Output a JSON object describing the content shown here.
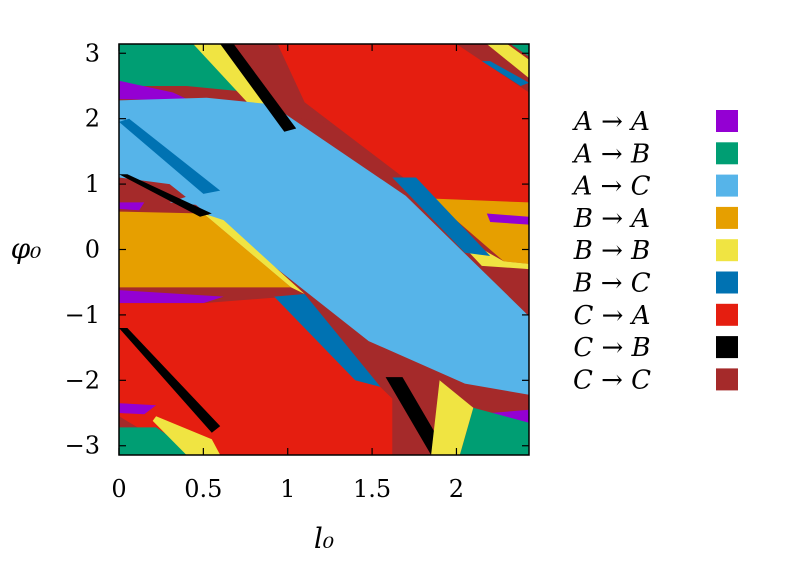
{
  "chart_data": {
    "type": "heatmap",
    "title": "",
    "xlabel": "l₀",
    "ylabel": "φ₀",
    "xlim": [
      0,
      2.43
    ],
    "ylim": [
      -3.1416,
      3.1416
    ],
    "xticks": [
      {
        "value": 0,
        "label": "0"
      },
      {
        "value": 0.5,
        "label": "0.5"
      },
      {
        "value": 1,
        "label": "1"
      },
      {
        "value": 1.5,
        "label": "1.5"
      },
      {
        "value": 2,
        "label": "2"
      }
    ],
    "yticks": [
      {
        "value": 3,
        "label": "3"
      },
      {
        "value": 2,
        "label": "2"
      },
      {
        "value": 1,
        "label": "1"
      },
      {
        "value": 0,
        "label": "0"
      },
      {
        "value": -1,
        "label": "−1"
      },
      {
        "value": -2,
        "label": "−2"
      },
      {
        "value": -3,
        "label": "−3"
      }
    ],
    "grid": false,
    "legend_position": "right",
    "categories": [
      {
        "label": "A → A",
        "color": "#9400d3"
      },
      {
        "label": "A → B",
        "color": "#009e73"
      },
      {
        "label": "A → C",
        "color": "#56b4e9"
      },
      {
        "label": "B → A",
        "color": "#e69f00"
      },
      {
        "label": "B → B",
        "color": "#f0e442"
      },
      {
        "label": "B → C",
        "color": "#0072b2"
      },
      {
        "label": "C → A",
        "color": "#e51e10"
      },
      {
        "label": "C → B",
        "color": "#000000"
      },
      {
        "label": "C → C",
        "color": "#a52a2a"
      }
    ],
    "regions": [
      {
        "category": "C → C",
        "points": [
          [
            0,
            3.1416
          ],
          [
            2.43,
            3.1416
          ],
          [
            2.43,
            -3.1416
          ],
          [
            0,
            -3.1416
          ]
        ]
      },
      {
        "category": "A → B",
        "points": [
          [
            0,
            3.1416
          ],
          [
            0.44,
            3.1416
          ],
          [
            0.72,
            2.42
          ],
          [
            0.4,
            2.5
          ],
          [
            0,
            2.5
          ]
        ]
      },
      {
        "category": "B → B",
        "points": [
          [
            0.44,
            3.1416
          ],
          [
            0.62,
            3.1416
          ],
          [
            0.98,
            2.05
          ],
          [
            0.76,
            2.25
          ]
        ]
      },
      {
        "category": "C → C",
        "points": [
          [
            0.62,
            3.1416
          ],
          [
            0.94,
            3.1416
          ],
          [
            1.3,
            1.9
          ],
          [
            0.98,
            2.05
          ]
        ]
      },
      {
        "category": "C → A",
        "points": [
          [
            0.94,
            3.1416
          ],
          [
            2.0,
            3.1416
          ],
          [
            2.43,
            2.4
          ],
          [
            2.43,
            0.72
          ],
          [
            1.85,
            0.78
          ],
          [
            1.1,
            2.25
          ]
        ]
      },
      {
        "category": "A → A",
        "points": [
          [
            0,
            2.58
          ],
          [
            0.32,
            2.4
          ],
          [
            0.42,
            2.28
          ],
          [
            0,
            2.3
          ]
        ]
      },
      {
        "category": "A → C",
        "points": [
          [
            0,
            2.28
          ],
          [
            0.52,
            2.32
          ],
          [
            0.9,
            2.22
          ],
          [
            1.7,
            0.82
          ],
          [
            2.43,
            -1.02
          ],
          [
            2.43,
            -2.22
          ],
          [
            2.05,
            -2.05
          ],
          [
            1.48,
            -1.4
          ],
          [
            0.3,
            1.0
          ],
          [
            0,
            1.1
          ]
        ]
      },
      {
        "category": "B → A",
        "points": [
          [
            1.85,
            0.78
          ],
          [
            2.43,
            0.72
          ],
          [
            2.43,
            -0.22
          ],
          [
            2.28,
            -0.18
          ]
        ]
      },
      {
        "category": "A → A",
        "points": [
          [
            2.18,
            0.55
          ],
          [
            2.43,
            0.5
          ],
          [
            2.43,
            0.38
          ],
          [
            2.2,
            0.42
          ]
        ]
      },
      {
        "category": "B → B",
        "points": [
          [
            1.95,
            0.3
          ],
          [
            2.28,
            -0.18
          ],
          [
            2.43,
            -0.22
          ],
          [
            2.43,
            -0.3
          ],
          [
            2.15,
            -0.25
          ]
        ]
      },
      {
        "category": "A → A",
        "points": [
          [
            0,
            0.72
          ],
          [
            0.15,
            0.72
          ],
          [
            0.12,
            0.6
          ],
          [
            0,
            0.62
          ]
        ]
      },
      {
        "category": "B → A",
        "points": [
          [
            0,
            0.58
          ],
          [
            0.5,
            0.55
          ],
          [
            1.02,
            -0.58
          ],
          [
            0,
            -0.58
          ]
        ]
      },
      {
        "category": "B → B",
        "points": [
          [
            0.5,
            0.55
          ],
          [
            0.62,
            0.45
          ],
          [
            1.1,
            -0.68
          ],
          [
            1.02,
            -0.58
          ]
        ]
      },
      {
        "category": "A → A",
        "points": [
          [
            0,
            -0.62
          ],
          [
            0.62,
            -0.72
          ],
          [
            0.5,
            -0.82
          ],
          [
            0,
            -0.82
          ]
        ]
      },
      {
        "category": "C → A",
        "points": [
          [
            0,
            -0.82
          ],
          [
            0.5,
            -0.82
          ],
          [
            1.0,
            -0.72
          ],
          [
            1.62,
            -2.28
          ],
          [
            1.62,
            -3.1416
          ],
          [
            0.38,
            -3.1416
          ],
          [
            0,
            -2.55
          ]
        ]
      },
      {
        "category": "A → C",
        "points": [
          [
            0.62,
            1.0
          ],
          [
            0.88,
            0.75
          ],
          [
            0.72,
            0.62
          ],
          [
            0.3,
            0.72
          ]
        ]
      },
      {
        "category": "B → C",
        "points": [
          [
            1.62,
            1.1
          ],
          [
            1.76,
            1.1
          ],
          [
            2.2,
            -0.1
          ],
          [
            2.05,
            -0.05
          ]
        ]
      },
      {
        "category": "B → C",
        "points": [
          [
            0.92,
            -0.72
          ],
          [
            1.1,
            -0.68
          ],
          [
            1.55,
            -2.1
          ],
          [
            1.4,
            -2.0
          ]
        ]
      },
      {
        "category": "B → C",
        "points": [
          [
            0,
            1.95
          ],
          [
            0.06,
            2.0
          ],
          [
            0.6,
            0.9
          ],
          [
            0.5,
            0.85
          ]
        ]
      },
      {
        "category": "C → B",
        "points": [
          [
            0.6,
            3.1416
          ],
          [
            0.68,
            3.1416
          ],
          [
            1.05,
            1.85
          ],
          [
            0.98,
            1.8
          ]
        ]
      },
      {
        "category": "C → B",
        "points": [
          [
            1.58,
            -1.95
          ],
          [
            1.68,
            -1.95
          ],
          [
            1.95,
            -3.1416
          ],
          [
            1.85,
            -3.1416
          ]
        ]
      },
      {
        "category": "C → B",
        "points": [
          [
            0,
            1.15
          ],
          [
            0.05,
            1.15
          ],
          [
            0.55,
            0.55
          ],
          [
            0.48,
            0.5
          ]
        ]
      },
      {
        "category": "C → B",
        "points": [
          [
            0,
            -1.2
          ],
          [
            0.05,
            -1.2
          ],
          [
            0.6,
            -2.7
          ],
          [
            0.55,
            -2.8
          ]
        ]
      },
      {
        "category": "B → B",
        "points": [
          [
            2.18,
            3.1416
          ],
          [
            2.3,
            3.1416
          ],
          [
            2.43,
            2.9
          ],
          [
            2.43,
            2.62
          ]
        ]
      },
      {
        "category": "A → B",
        "points": [
          [
            2.32,
            3.1416
          ],
          [
            2.43,
            3.1416
          ],
          [
            2.43,
            2.95
          ]
        ]
      },
      {
        "category": "B → C",
        "points": [
          [
            2.15,
            2.88
          ],
          [
            2.2,
            2.88
          ],
          [
            2.43,
            2.55
          ],
          [
            2.38,
            2.5
          ]
        ]
      },
      {
        "category": "A → A",
        "points": [
          [
            2.2,
            -2.5
          ],
          [
            2.43,
            -2.45
          ],
          [
            2.43,
            -2.65
          ],
          [
            2.3,
            -2.62
          ]
        ]
      },
      {
        "category": "A → B",
        "points": [
          [
            2.1,
            -2.42
          ],
          [
            2.43,
            -2.65
          ],
          [
            2.43,
            -3.1416
          ],
          [
            2.02,
            -3.1416
          ]
        ]
      },
      {
        "category": "B → B",
        "points": [
          [
            1.9,
            -2.0
          ],
          [
            2.1,
            -2.42
          ],
          [
            2.02,
            -3.1416
          ],
          [
            1.85,
            -3.1416
          ]
        ]
      },
      {
        "category": "C → C",
        "points": [
          [
            0,
            -2.55
          ],
          [
            0.38,
            -3.1416
          ],
          [
            0,
            -3.1416
          ]
        ]
      },
      {
        "category": "A → A",
        "points": [
          [
            0,
            -2.35
          ],
          [
            0.22,
            -2.38
          ],
          [
            0.15,
            -2.52
          ],
          [
            0,
            -2.5
          ]
        ]
      },
      {
        "category": "A → B",
        "points": [
          [
            0,
            -2.72
          ],
          [
            0.22,
            -2.72
          ],
          [
            0.46,
            -3.1416
          ],
          [
            0,
            -3.1416
          ]
        ]
      },
      {
        "category": "B → B",
        "points": [
          [
            0.22,
            -2.55
          ],
          [
            0.55,
            -2.9
          ],
          [
            0.6,
            -3.1416
          ],
          [
            0.4,
            -3.1416
          ],
          [
            0.2,
            -2.62
          ]
        ]
      }
    ]
  }
}
